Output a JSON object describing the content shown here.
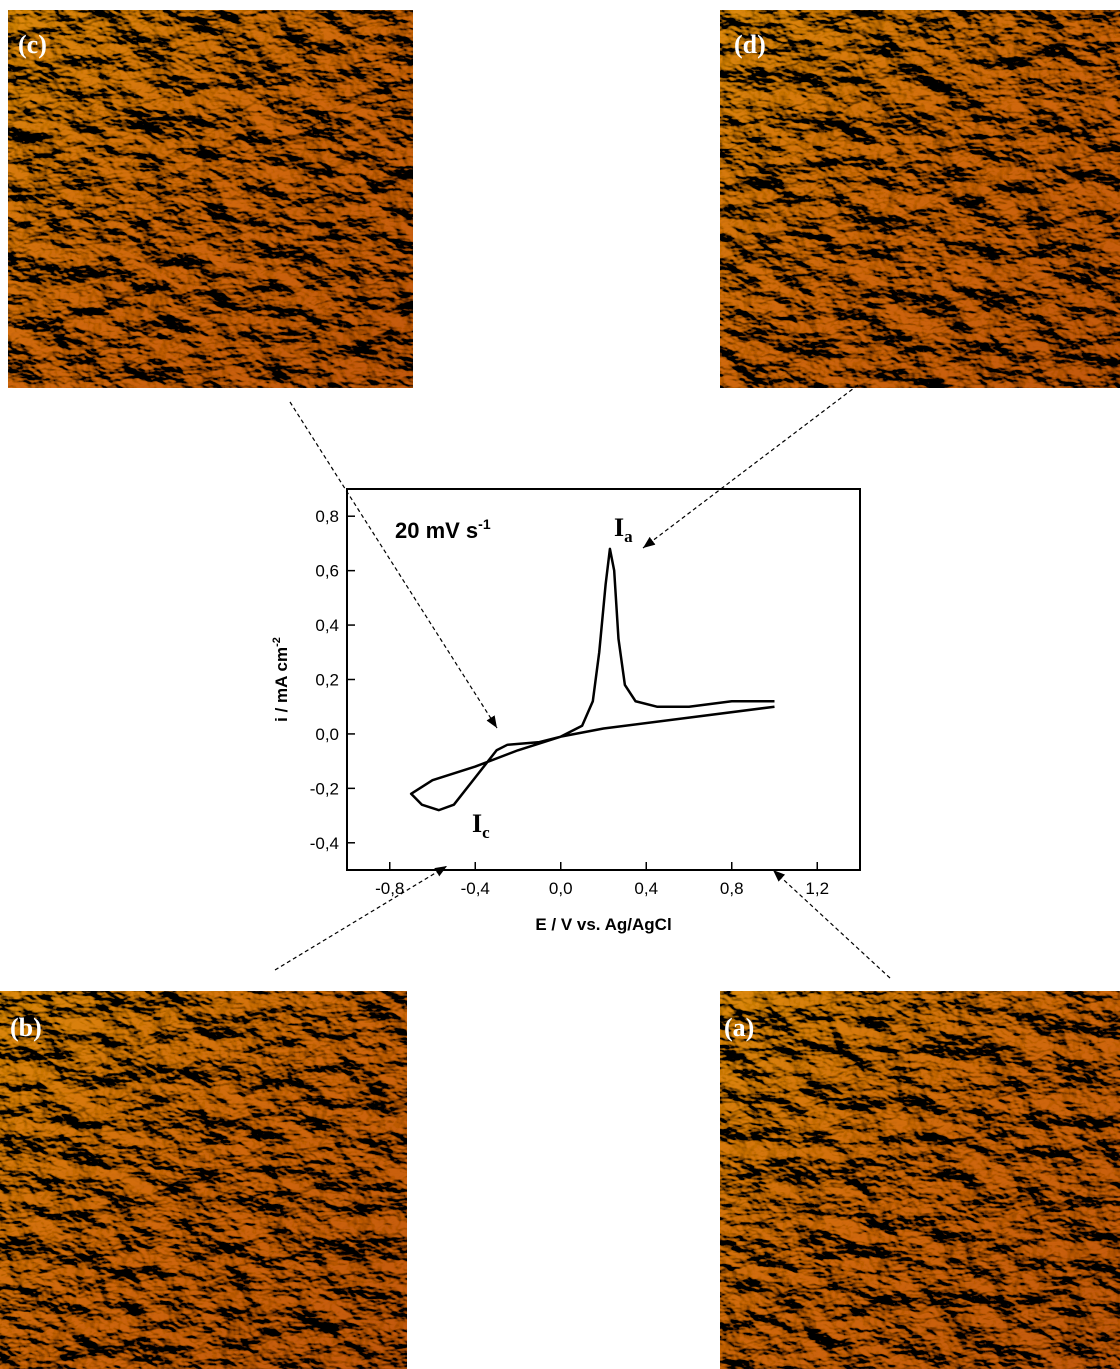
{
  "panels": [
    "(c)",
    "(d)",
    "(b)",
    "(a)"
  ],
  "chart_data": {
    "type": "line",
    "annotation": {
      "text": "20 mV s",
      "sup": "-1"
    },
    "peak_labels": [
      {
        "text": "I",
        "sub": "a"
      },
      {
        "text": "I",
        "sub": "c"
      }
    ],
    "xlabel": "E / V vs. Ag/AgCl",
    "ylabel": {
      "text": "i / mA cm",
      "sup": "-2"
    },
    "xlim": [
      -1.0,
      1.4
    ],
    "ylim": [
      -0.5,
      0.9
    ],
    "xticks": [
      {
        "value": -0.8,
        "label": "-0,8"
      },
      {
        "value": -0.4,
        "label": "-0,4"
      },
      {
        "value": 0.0,
        "label": "0,0"
      },
      {
        "value": 0.4,
        "label": "0,4"
      },
      {
        "value": 0.8,
        "label": "0,8"
      },
      {
        "value": 1.2,
        "label": "1,2"
      }
    ],
    "yticks": [
      {
        "value": -0.4,
        "label": "-0,4"
      },
      {
        "value": -0.2,
        "label": "-0,2"
      },
      {
        "value": 0.0,
        "label": "0,0"
      },
      {
        "value": 0.2,
        "label": "0,2"
      },
      {
        "value": 0.4,
        "label": "0,4"
      },
      {
        "value": 0.6,
        "label": "0,6"
      },
      {
        "value": 0.8,
        "label": "0,8"
      }
    ],
    "series": [
      {
        "color": "#000000",
        "x": [
          1.0,
          0.6,
          0.2,
          0.0,
          -0.2,
          -0.4,
          -0.6,
          -0.7,
          -0.65,
          -0.57,
          -0.5,
          -0.4,
          -0.3,
          -0.25,
          -0.1,
          0.0,
          0.1,
          0.15,
          0.18,
          0.21,
          0.23,
          0.25,
          0.27,
          0.3,
          0.35,
          0.45,
          0.6,
          0.8,
          1.0
        ],
        "values": [
          0.1,
          0.06,
          0.02,
          -0.01,
          -0.06,
          -0.12,
          -0.17,
          -0.22,
          -0.26,
          -0.28,
          -0.26,
          -0.16,
          -0.06,
          -0.04,
          -0.03,
          -0.01,
          0.03,
          0.12,
          0.3,
          0.55,
          0.68,
          0.6,
          0.35,
          0.18,
          0.12,
          0.1,
          0.1,
          0.12,
          0.12
        ]
      }
    ]
  }
}
